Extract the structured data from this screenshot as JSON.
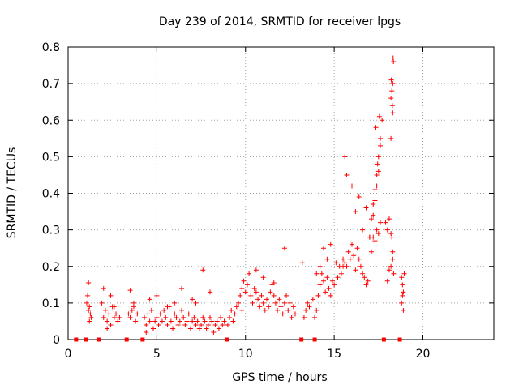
{
  "chart_data": {
    "type": "scatter",
    "title": "Day 239 of 2014, SRMTID for receiver lpgs",
    "xlabel": "GPS time / hours",
    "ylabel": "SRMTID / TECUs",
    "xlim": [
      0,
      24
    ],
    "ylim": [
      0,
      0.8
    ],
    "xticks": [
      0,
      5,
      10,
      15,
      20
    ],
    "yticks": [
      0,
      0.1,
      0.2,
      0.3,
      0.4,
      0.5,
      0.6,
      0.7,
      0.8
    ],
    "xtick_labels": [
      "0",
      "5",
      "10",
      "15",
      "20"
    ],
    "ytick_labels": [
      "0",
      "0.1",
      "0.2",
      "0.3",
      "0.4",
      "0.5",
      "0.6",
      "0.7",
      "0.8"
    ],
    "grid": true,
    "marker": "+",
    "color": "#ff0000",
    "zero_markers_x": [
      0.45,
      1.0,
      1.75,
      3.3,
      4.2,
      8.95,
      13.15,
      13.9,
      17.8,
      18.7
    ],
    "x": [
      1.05,
      1.1,
      1.15,
      1.2,
      1.25,
      1.15,
      1.2,
      1.3,
      1.9,
      2.0,
      2.1,
      2.2,
      2.3,
      2.4,
      2.5,
      2.6,
      2.7,
      2.8,
      2.9,
      2.0,
      2.2,
      2.4,
      2.6,
      3.4,
      3.5,
      3.6,
      3.7,
      3.8,
      3.9,
      3.5,
      3.7,
      4.3,
      4.4,
      4.5,
      4.6,
      4.7,
      4.8,
      4.9,
      5.0,
      5.1,
      5.2,
      5.3,
      5.4,
      5.5,
      5.6,
      5.7,
      5.8,
      5.9,
      6.0,
      6.1,
      6.2,
      6.3,
      6.4,
      6.5,
      6.6,
      6.7,
      6.8,
      6.9,
      7.0,
      7.1,
      7.2,
      7.3,
      7.4,
      7.5,
      7.6,
      7.7,
      7.8,
      7.9,
      8.0,
      8.1,
      8.2,
      8.3,
      8.4,
      8.5,
      8.6,
      8.7,
      8.8,
      5.0,
      6.0,
      7.0,
      8.0,
      4.6,
      6.4,
      7.6,
      4.4,
      5.6,
      7.2,
      9.0,
      9.1,
      9.2,
      9.3,
      9.4,
      9.5,
      9.6,
      9.7,
      9.8,
      9.9,
      10.0,
      10.1,
      10.2,
      10.3,
      10.4,
      10.5,
      10.6,
      10.7,
      10.8,
      10.9,
      11.0,
      11.1,
      11.2,
      11.3,
      11.4,
      11.5,
      11.6,
      11.7,
      11.8,
      11.9,
      12.0,
      12.1,
      12.2,
      12.3,
      12.4,
      12.5,
      12.6,
      12.7,
      12.8,
      9.8,
      10.6,
      11.0,
      11.6,
      12.2,
      13.2,
      13.3,
      13.4,
      13.5,
      13.6,
      13.8,
      13.9,
      14.0,
      14.1,
      14.2,
      14.3,
      14.4,
      14.5,
      14.6,
      14.7,
      14.8,
      14.9,
      15.0,
      14.0,
      14.2,
      14.4,
      14.6,
      14.8,
      15.1,
      15.2,
      15.3,
      15.4,
      15.5,
      15.6,
      15.7,
      15.8,
      15.9,
      16.0,
      16.1,
      16.2,
      16.3,
      16.4,
      16.5,
      16.6,
      16.7,
      16.8,
      16.9,
      15.5,
      15.6,
      15.7,
      16.0,
      16.2,
      16.4,
      16.6,
      16.8,
      17.0,
      17.1,
      17.2,
      17.3,
      17.4,
      17.5,
      17.6,
      17.0,
      17.1,
      17.2,
      17.3,
      17.4,
      17.5,
      17.6,
      17.7,
      17.3,
      17.4,
      17.5,
      17.6,
      17.2,
      17.45,
      17.35,
      17.55,
      18.0,
      18.1,
      18.2,
      18.3,
      18.1,
      18.2,
      18.25,
      18.3,
      18.35,
      18.2,
      18.3,
      18.2,
      18.25,
      18.3,
      18.32,
      18.34,
      18.28,
      18.22,
      18.8,
      18.85,
      18.9,
      18.95,
      18.8,
      18.9,
      18.85,
      17.9,
      18.0
    ],
    "y": [
      0.1,
      0.12,
      0.08,
      0.05,
      0.07,
      0.155,
      0.09,
      0.06,
      0.1,
      0.06,
      0.08,
      0.05,
      0.07,
      0.04,
      0.09,
      0.06,
      0.07,
      0.05,
      0.06,
      0.14,
      0.03,
      0.12,
      0.09,
      0.07,
      0.06,
      0.08,
      0.1,
      0.05,
      0.07,
      0.135,
      0.09,
      0.06,
      0.04,
      0.07,
      0.05,
      0.08,
      0.03,
      0.05,
      0.06,
      0.04,
      0.07,
      0.05,
      0.08,
      0.06,
      0.04,
      0.09,
      0.05,
      0.03,
      0.07,
      0.06,
      0.04,
      0.05,
      0.08,
      0.06,
      0.04,
      0.05,
      0.07,
      0.03,
      0.05,
      0.06,
      0.04,
      0.05,
      0.03,
      0.04,
      0.06,
      0.05,
      0.03,
      0.04,
      0.06,
      0.05,
      0.02,
      0.04,
      0.05,
      0.03,
      0.06,
      0.04,
      0.05,
      0.12,
      0.1,
      0.11,
      0.13,
      0.11,
      0.14,
      0.19,
      0.02,
      0.09,
      0.1,
      0.04,
      0.06,
      0.08,
      0.05,
      0.07,
      0.09,
      0.1,
      0.12,
      0.14,
      0.16,
      0.13,
      0.15,
      0.18,
      0.12,
      0.1,
      0.14,
      0.13,
      0.11,
      0.09,
      0.12,
      0.1,
      0.08,
      0.11,
      0.09,
      0.13,
      0.15,
      0.12,
      0.1,
      0.08,
      0.11,
      0.09,
      0.07,
      0.1,
      0.12,
      0.08,
      0.1,
      0.06,
      0.09,
      0.07,
      0.08,
      0.19,
      0.17,
      0.155,
      0.25,
      0.21,
      0.06,
      0.08,
      0.1,
      0.09,
      0.11,
      0.06,
      0.08,
      0.12,
      0.15,
      0.18,
      0.16,
      0.13,
      0.17,
      0.14,
      0.12,
      0.16,
      0.15,
      0.18,
      0.2,
      0.25,
      0.22,
      0.26,
      0.21,
      0.17,
      0.2,
      0.18,
      0.22,
      0.21,
      0.2,
      0.24,
      0.22,
      0.26,
      0.23,
      0.19,
      0.25,
      0.22,
      0.2,
      0.18,
      0.17,
      0.15,
      0.16,
      0.2,
      0.5,
      0.45,
      0.42,
      0.35,
      0.39,
      0.3,
      0.36,
      0.28,
      0.24,
      0.28,
      0.27,
      0.3,
      0.29,
      0.32,
      0.28,
      0.33,
      0.37,
      0.41,
      0.45,
      0.5,
      0.55,
      0.6,
      0.38,
      0.42,
      0.46,
      0.53,
      0.34,
      0.48,
      0.58,
      0.61,
      0.16,
      0.19,
      0.2,
      0.22,
      0.33,
      0.29,
      0.28,
      0.24,
      0.18,
      0.55,
      0.62,
      0.66,
      0.68,
      0.7,
      0.77,
      0.76,
      0.64,
      0.71,
      0.17,
      0.15,
      0.13,
      0.18,
      0.1,
      0.08,
      0.12,
      0.32,
      0.3
    ]
  }
}
